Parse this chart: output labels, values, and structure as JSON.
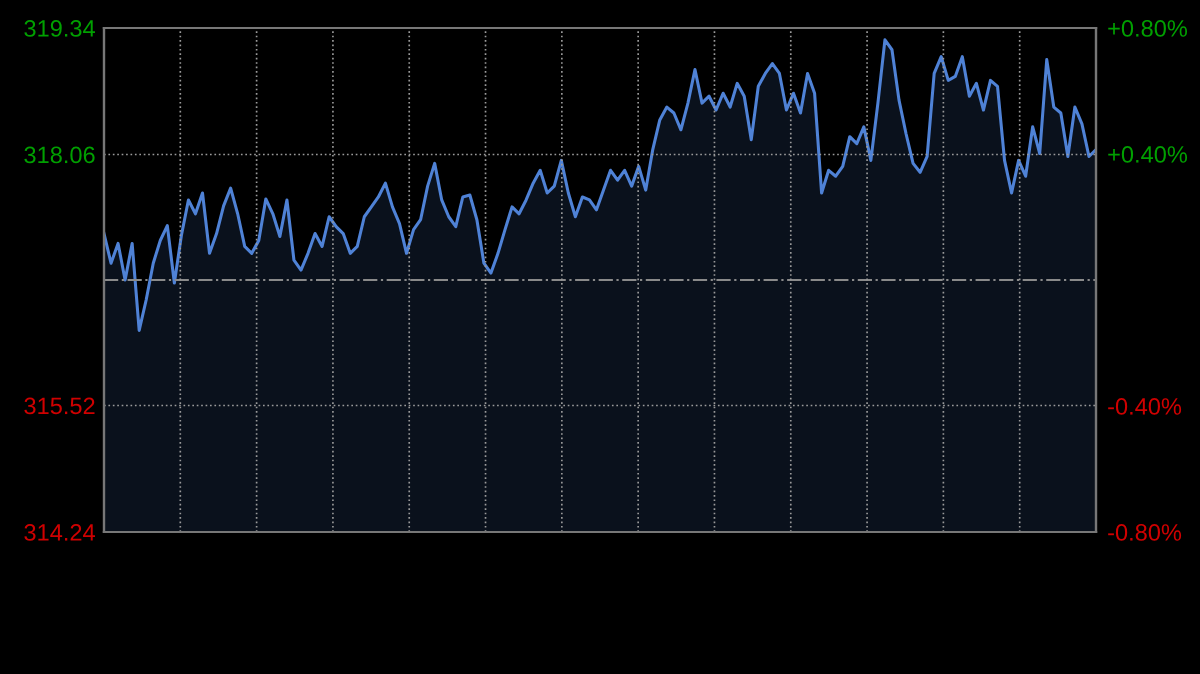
{
  "chart_data": {
    "type": "area",
    "categories": [
      null,
      null,
      null,
      null,
      null,
      null,
      null,
      null,
      null,
      null,
      null,
      null,
      null,
      null,
      null,
      null,
      null,
      null,
      null,
      null,
      null,
      null,
      null,
      null,
      null,
      null,
      null,
      null,
      null,
      null,
      null,
      null,
      null,
      null,
      null,
      null,
      null,
      null,
      null,
      null,
      null,
      null,
      null,
      null,
      null,
      null,
      null,
      null,
      null,
      null,
      null,
      null,
      null,
      null,
      null,
      null,
      null,
      null,
      null,
      null,
      null,
      null,
      null,
      null,
      null,
      null,
      null,
      null,
      null,
      null,
      null,
      null,
      null,
      null,
      null,
      null,
      null,
      null,
      null,
      null,
      null,
      null,
      null,
      null,
      null,
      null,
      null,
      null,
      null,
      null,
      null,
      null,
      null,
      null,
      null,
      null,
      null,
      null,
      null,
      null,
      null,
      null,
      null,
      null,
      null,
      null,
      null,
      null,
      null,
      null,
      null,
      null,
      null,
      null,
      null,
      null,
      null,
      null,
      null,
      null,
      null,
      null,
      null,
      null,
      null,
      null,
      null,
      null,
      null,
      null,
      null,
      null,
      null,
      null,
      null,
      null,
      null,
      null,
      null,
      null,
      null,
      null
    ],
    "series": [
      {
        "color": "#4f82d6",
        "values": [
          317.26,
          316.96,
          317.16,
          316.79,
          317.16,
          316.28,
          316.59,
          316.96,
          317.19,
          317.34,
          316.76,
          317.24,
          317.6,
          317.46,
          317.67,
          317.06,
          317.26,
          317.54,
          317.72,
          317.46,
          317.13,
          317.06,
          317.19,
          317.61,
          317.46,
          317.23,
          317.6,
          316.99,
          316.89,
          317.06,
          317.26,
          317.13,
          317.43,
          317.33,
          317.26,
          317.06,
          317.13,
          317.43,
          317.53,
          317.63,
          317.77,
          317.53,
          317.36,
          317.06,
          317.3,
          317.4,
          317.74,
          317.97,
          317.6,
          317.43,
          317.33,
          317.63,
          317.65,
          317.4,
          316.96,
          316.86,
          317.06,
          317.3,
          317.53,
          317.46,
          317.6,
          317.77,
          317.9,
          317.67,
          317.74,
          318.0,
          317.67,
          317.43,
          317.63,
          317.6,
          317.5,
          317.7,
          317.9,
          317.8,
          317.9,
          317.74,
          317.94,
          317.7,
          318.11,
          318.41,
          318.54,
          318.48,
          318.31,
          318.58,
          318.92,
          318.58,
          318.65,
          318.51,
          318.68,
          318.54,
          318.78,
          318.65,
          318.21,
          318.75,
          318.88,
          318.98,
          318.88,
          318.51,
          318.68,
          318.48,
          318.88,
          318.68,
          317.67,
          317.9,
          317.84,
          317.94,
          318.24,
          318.17,
          318.34,
          318.0,
          318.58,
          319.22,
          319.12,
          318.61,
          318.27,
          317.97,
          317.88,
          318.04,
          318.88,
          319.05,
          318.81,
          318.85,
          319.05,
          318.65,
          318.78,
          318.51,
          318.81,
          318.75,
          318.0,
          317.67,
          318.0,
          317.84,
          318.34,
          318.07,
          319.02,
          318.54,
          318.48,
          318.04,
          318.54,
          318.37,
          318.04,
          318.11
        ]
      }
    ],
    "ylim": [
      314.24,
      319.34
    ],
    "yticks": [
      314.24,
      315.52,
      318.06,
      319.34
    ],
    "y2lim": [
      -0.8,
      0.8
    ],
    "y2ticks": [
      {
        "value": -0.8,
        "label": "-0.80%"
      },
      {
        "value": -0.4,
        "label": "-0.40%"
      },
      {
        "value": 0.4,
        "label": "+0.40%"
      },
      {
        "value": 0.8,
        "label": "+0.80%"
      }
    ],
    "ref_lines": [
      {
        "axis": "y",
        "value": 316.79,
        "color": "#8a8a8a",
        "line_style": "dashdot"
      }
    ],
    "grid": true,
    "legend": false
  }
}
